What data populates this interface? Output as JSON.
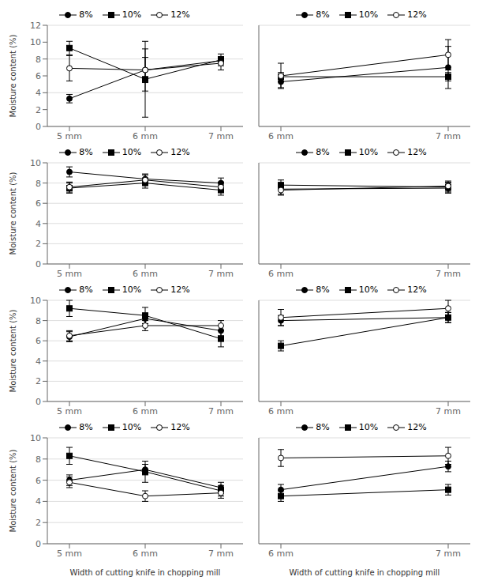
{
  "chart_data": [
    {
      "type": "line",
      "categories": [
        "5 mm",
        "6 mm",
        "7 mm"
      ],
      "series": [
        {
          "name": "8%",
          "color": "black",
          "marker": "circle",
          "values": [
            3.3,
            6.7,
            7.8
          ],
          "errors": [
            0.5,
            2.5,
            0.4
          ]
        },
        {
          "name": "10%",
          "color": "black",
          "marker": "square",
          "values": [
            9.3,
            5.6,
            7.9
          ],
          "errors": [
            0.8,
            4.5,
            0.7
          ]
        },
        {
          "name": "12%",
          "color": "black",
          "marker": "open_circle",
          "values": [
            6.9,
            6.7,
            7.5
          ],
          "errors": [
            1.5,
            1.5,
            0.8
          ]
        }
      ],
      "ylabel": "Moisture content (%)",
      "ylim": [
        0,
        12
      ],
      "yticks": [
        0,
        2,
        4,
        6,
        8,
        10,
        12
      ],
      "grid": true,
      "legend": "top"
    },
    {
      "type": "line",
      "categories": [
        "6 mm",
        "7 mm"
      ],
      "series": [
        {
          "name": "8%",
          "color": "black",
          "marker": "circle",
          "values": [
            5.3,
            7.0
          ],
          "errors": [
            0.7,
            2.5
          ]
        },
        {
          "name": "10%",
          "color": "black",
          "marker": "square",
          "values": [
            5.9,
            5.9
          ],
          "errors": [
            0.5,
            0.5
          ]
        },
        {
          "name": "12%",
          "color": "black",
          "marker": "open_circle",
          "values": [
            6.0,
            8.5
          ],
          "errors": [
            1.5,
            1.8
          ]
        }
      ],
      "ylim": [
        0,
        12
      ],
      "yticks": [
        0,
        2,
        4,
        6,
        8,
        10,
        12
      ],
      "grid": true,
      "legend": "top",
      "tick_labels": "x"
    },
    {
      "type": "line",
      "categories": [
        "5 mm",
        "6 mm",
        "7 mm"
      ],
      "series": [
        {
          "name": "8%",
          "color": "black",
          "marker": "circle",
          "values": [
            9.1,
            8.4,
            8.0
          ],
          "errors": [
            0.5,
            0.5,
            0.5
          ]
        },
        {
          "name": "10%",
          "color": "black",
          "marker": "square",
          "values": [
            7.5,
            8.0,
            7.3
          ],
          "errors": [
            0.5,
            0.5,
            0.5
          ]
        },
        {
          "name": "12%",
          "color": "black",
          "marker": "open_circle",
          "values": [
            7.6,
            8.3,
            7.6
          ],
          "errors": [
            0.5,
            0.5,
            0.5
          ]
        }
      ],
      "ylabel": "Moisture content (%)",
      "ylim": [
        0,
        10
      ],
      "yticks": [
        0,
        2,
        4,
        6,
        8,
        10
      ],
      "grid": true,
      "legend": "top"
    },
    {
      "type": "line",
      "categories": [
        "6 mm",
        "7 mm"
      ],
      "series": [
        {
          "name": "8%",
          "color": "black",
          "marker": "circle",
          "values": [
            7.4,
            7.5
          ],
          "errors": [
            0.5,
            0.5
          ]
        },
        {
          "name": "10%",
          "color": "black",
          "marker": "square",
          "values": [
            7.8,
            7.6
          ],
          "errors": [
            0.5,
            0.5
          ]
        },
        {
          "name": "12%",
          "color": "black",
          "marker": "open_circle",
          "values": [
            7.3,
            7.7
          ],
          "errors": [
            0.5,
            0.5
          ]
        }
      ],
      "ylim": [
        0,
        10
      ],
      "yticks": [
        0,
        2,
        4,
        6,
        8,
        10
      ],
      "grid": true,
      "legend": "top",
      "tick_labels": "x"
    },
    {
      "type": "line",
      "categories": [
        "5 mm",
        "6 mm",
        "7 mm"
      ],
      "series": [
        {
          "name": "8%",
          "color": "black",
          "marker": "circle",
          "values": [
            6.4,
            8.2,
            7.0
          ],
          "errors": [
            0.5,
            0.5,
            0.5
          ]
        },
        {
          "name": "10%",
          "color": "black",
          "marker": "square",
          "values": [
            9.2,
            8.5,
            6.2
          ],
          "errors": [
            0.8,
            0.8,
            0.8
          ]
        },
        {
          "name": "12%",
          "color": "black",
          "marker": "open_circle",
          "values": [
            6.5,
            7.5,
            7.5
          ],
          "errors": [
            0.5,
            0.5,
            0.5
          ]
        }
      ],
      "ylabel": "Moisture content (%)",
      "ylim": [
        0,
        10
      ],
      "yticks": [
        0,
        2,
        4,
        6,
        8,
        10
      ],
      "grid": true,
      "legend": "top"
    },
    {
      "type": "line",
      "categories": [
        "6 mm",
        "7 mm"
      ],
      "series": [
        {
          "name": "8%",
          "color": "black",
          "marker": "circle",
          "values": [
            8.0,
            8.3
          ],
          "errors": [
            0.5,
            0.5
          ]
        },
        {
          "name": "10%",
          "color": "black",
          "marker": "square",
          "values": [
            5.5,
            8.3
          ],
          "errors": [
            0.5,
            0.5
          ]
        },
        {
          "name": "12%",
          "color": "black",
          "marker": "open_circle",
          "values": [
            8.3,
            9.2
          ],
          "errors": [
            0.8,
            0.8
          ]
        }
      ],
      "ylim": [
        0,
        10
      ],
      "yticks": [
        0,
        2,
        4,
        6,
        8,
        10
      ],
      "grid": true,
      "legend": "top",
      "tick_labels": "x"
    },
    {
      "type": "line",
      "categories": [
        "5 mm",
        "6 mm",
        "7 mm"
      ],
      "series": [
        {
          "name": "8%",
          "color": "black",
          "marker": "circle",
          "values": [
            6.0,
            7.0,
            5.3
          ],
          "errors": [
            0.5,
            0.5,
            0.5
          ]
        },
        {
          "name": "10%",
          "color": "black",
          "marker": "square",
          "values": [
            8.3,
            6.8,
            5.0
          ],
          "errors": [
            0.8,
            1.0,
            0.5
          ]
        },
        {
          "name": "12%",
          "color": "black",
          "marker": "open_circle",
          "values": [
            5.8,
            4.5,
            4.8
          ],
          "errors": [
            0.5,
            0.5,
            0.5
          ]
        }
      ],
      "ylabel": "Moisture content (%)",
      "xlabel": "Width of cutting knife in chopping mill",
      "ylim": [
        0,
        10
      ],
      "yticks": [
        0,
        2,
        4,
        6,
        8,
        10
      ],
      "grid": true,
      "legend": "top"
    },
    {
      "type": "line",
      "categories": [
        "6 mm",
        "7 mm"
      ],
      "series": [
        {
          "name": "8%",
          "color": "black",
          "marker": "circle",
          "values": [
            5.1,
            7.3
          ],
          "errors": [
            0.5,
            0.5
          ]
        },
        {
          "name": "10%",
          "color": "black",
          "marker": "square",
          "values": [
            4.5,
            5.1
          ],
          "errors": [
            0.5,
            0.5
          ]
        },
        {
          "name": "12%",
          "color": "black",
          "marker": "open_circle",
          "values": [
            8.1,
            8.3
          ],
          "errors": [
            0.8,
            0.8
          ]
        }
      ],
      "xlabel": "Width of cutting knife in chopping mill",
      "ylim": [
        0,
        10
      ],
      "yticks": [
        0,
        2,
        4,
        6,
        8,
        10
      ],
      "grid": true,
      "legend": "top",
      "tick_labels": "x"
    }
  ]
}
